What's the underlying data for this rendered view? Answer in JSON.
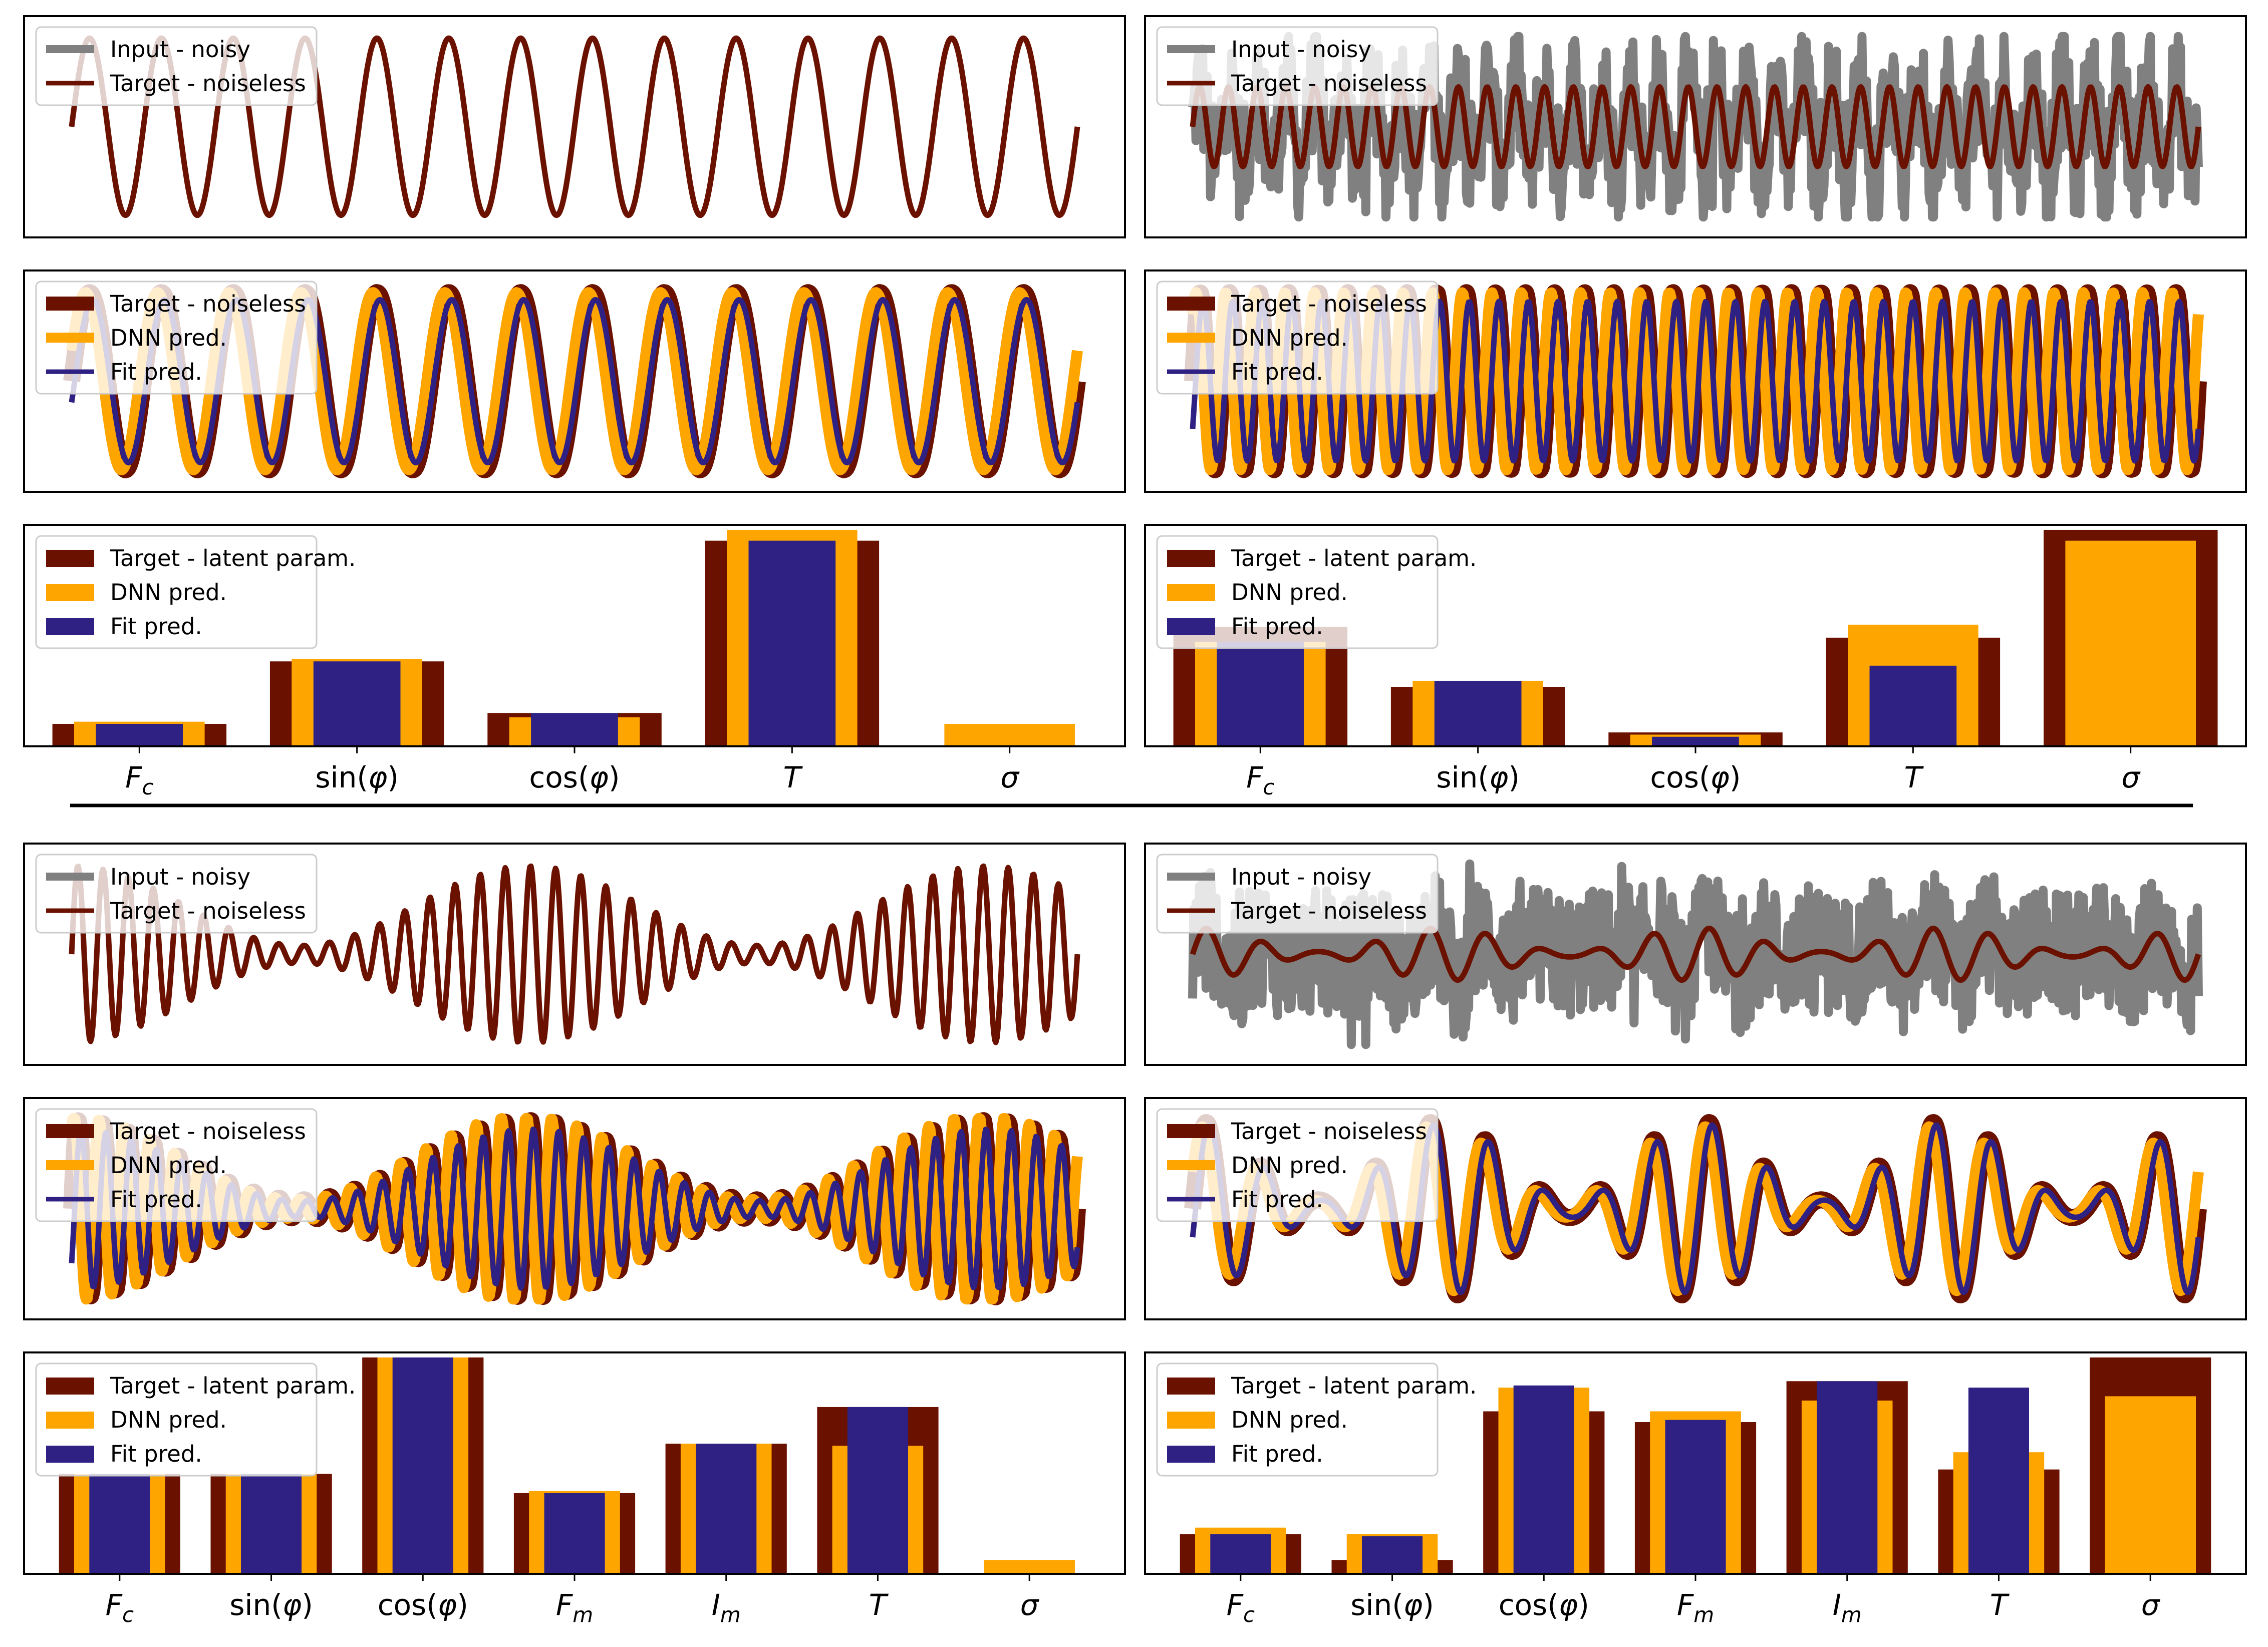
{
  "colors": {
    "target": "#6b1100",
    "dnn": "#ffa500",
    "fit": "#2e2183",
    "noisy": "#808080"
  },
  "legends": {
    "noisy": "Input - noisy",
    "noiseless": "Target - noiseless",
    "dnn": "DNN pred.",
    "fit": "Fit pred.",
    "latent": "Target - latent param."
  },
  "chart_data": [
    {
      "id": "top-left-input",
      "type": "line",
      "series": [
        {
          "name": "Input - noisy",
          "kind": "sine",
          "periods": 14,
          "amp": 1.0,
          "noise": 0.0
        },
        {
          "name": "Target - noiseless",
          "kind": "sine",
          "periods": 14,
          "amp": 1.0
        }
      ]
    },
    {
      "id": "top-right-input",
      "type": "line",
      "series": [
        {
          "name": "Input - noisy",
          "kind": "sine",
          "periods": 35,
          "amp": 0.45,
          "noise": 1.0
        },
        {
          "name": "Target - noiseless",
          "kind": "sine",
          "periods": 35,
          "amp": 0.45
        }
      ]
    },
    {
      "id": "top-left-pred",
      "type": "line",
      "series": [
        {
          "name": "Target - noiseless",
          "kind": "sine",
          "periods": 14,
          "amp": 1.0
        },
        {
          "name": "DNN pred.",
          "kind": "sine",
          "periods": 14,
          "amp": 1.0
        },
        {
          "name": "Fit pred.",
          "kind": "sine",
          "periods": 14,
          "amp": 0.92
        }
      ]
    },
    {
      "id": "top-right-pred",
      "type": "line",
      "series": [
        {
          "name": "Target - noiseless",
          "kind": "sine",
          "periods": 34,
          "amp": 1.0
        },
        {
          "name": "DNN pred.",
          "kind": "sine",
          "periods": 34,
          "amp": 1.0
        },
        {
          "name": "Fit pred.",
          "kind": "sine",
          "periods": 34,
          "amp": 0.9
        }
      ]
    },
    {
      "id": "top-left-params",
      "type": "bar",
      "categories": [
        "F_c",
        "sin(φ)",
        "cos(φ)",
        "T",
        "σ"
      ],
      "series": [
        {
          "name": "Target - latent param.",
          "values": [
            0.1,
            0.39,
            0.15,
            0.95,
            0.0
          ]
        },
        {
          "name": "DNN pred.",
          "values": [
            0.11,
            0.4,
            0.13,
            1.0,
            0.1
          ]
        },
        {
          "name": "Fit pred.",
          "values": [
            0.1,
            0.39,
            0.15,
            0.95,
            null
          ]
        }
      ]
    },
    {
      "id": "top-right-params",
      "type": "bar",
      "categories": [
        "F_c",
        "sin(φ)",
        "cos(φ)",
        "T",
        "σ"
      ],
      "series": [
        {
          "name": "Target - latent param.",
          "values": [
            0.55,
            0.27,
            0.06,
            0.5,
            1.0
          ]
        },
        {
          "name": "DNN pred.",
          "values": [
            0.48,
            0.3,
            0.05,
            0.56,
            0.95
          ]
        },
        {
          "name": "Fit pred.",
          "values": [
            0.48,
            0.3,
            0.04,
            0.37,
            null
          ]
        }
      ]
    },
    {
      "id": "bottom-left-input",
      "type": "line",
      "series": [
        {
          "name": "Input - noisy",
          "kind": "am",
          "periods": 40,
          "mod": 2.2,
          "amp": 1.0,
          "noise": 0.0
        },
        {
          "name": "Target - noiseless",
          "kind": "am",
          "periods": 40,
          "mod": 2.2,
          "amp": 1.0
        }
      ]
    },
    {
      "id": "bottom-right-input",
      "type": "line",
      "series": [
        {
          "name": "Input - noisy",
          "kind": "am",
          "periods": 18,
          "mod": 4.0,
          "amp": 0.3,
          "noise": 1.0
        },
        {
          "name": "Target - noiseless",
          "kind": "am",
          "periods": 18,
          "mod": 4.0,
          "amp": 0.3
        }
      ]
    },
    {
      "id": "bottom-left-pred",
      "type": "line",
      "series": [
        {
          "name": "Target - noiseless",
          "kind": "am",
          "periods": 40,
          "mod": 2.2,
          "amp": 1.0
        },
        {
          "name": "DNN pred.",
          "kind": "am",
          "periods": 40,
          "mod": 2.2,
          "amp": 1.05
        },
        {
          "name": "Fit pred.",
          "kind": "am",
          "periods": 40,
          "mod": 2.2,
          "amp": 0.9
        }
      ]
    },
    {
      "id": "bottom-right-pred",
      "type": "line",
      "series": [
        {
          "name": "Target - noiseless",
          "kind": "am",
          "periods": 18,
          "mod": 4.0,
          "amp": 1.0
        },
        {
          "name": "DNN pred.",
          "kind": "am",
          "periods": 18,
          "mod": 4.0,
          "amp": 0.95
        },
        {
          "name": "Fit pred.",
          "kind": "am",
          "periods": 18,
          "mod": 4.0,
          "amp": 0.97
        }
      ]
    },
    {
      "id": "bottom-left-params",
      "type": "bar",
      "categories": [
        "F_c",
        "sin(φ)",
        "cos(φ)",
        "F_m",
        "I_m",
        "T",
        "σ"
      ],
      "series": [
        {
          "name": "Target - latent param.",
          "values": [
            0.46,
            0.46,
            1.0,
            0.37,
            0.6,
            0.77,
            0.0
          ]
        },
        {
          "name": "DNN pred.",
          "values": [
            0.46,
            0.46,
            1.0,
            0.38,
            0.6,
            0.59,
            0.06
          ]
        },
        {
          "name": "Fit pred.",
          "values": [
            0.46,
            0.46,
            1.0,
            0.37,
            0.6,
            0.77,
            null
          ]
        }
      ]
    },
    {
      "id": "bottom-right-params",
      "type": "bar",
      "categories": [
        "F_c",
        "sin(φ)",
        "cos(φ)",
        "F_m",
        "I_m",
        "T",
        "σ"
      ],
      "series": [
        {
          "name": "Target - latent param.",
          "values": [
            0.18,
            0.06,
            0.75,
            0.7,
            0.89,
            0.48,
            1.0
          ]
        },
        {
          "name": "DNN pred.",
          "values": [
            0.21,
            0.18,
            0.86,
            0.75,
            0.8,
            0.56,
            0.82
          ]
        },
        {
          "name": "Fit pred.",
          "values": [
            0.18,
            0.17,
            0.87,
            0.71,
            0.89,
            0.86,
            null
          ]
        }
      ]
    }
  ]
}
